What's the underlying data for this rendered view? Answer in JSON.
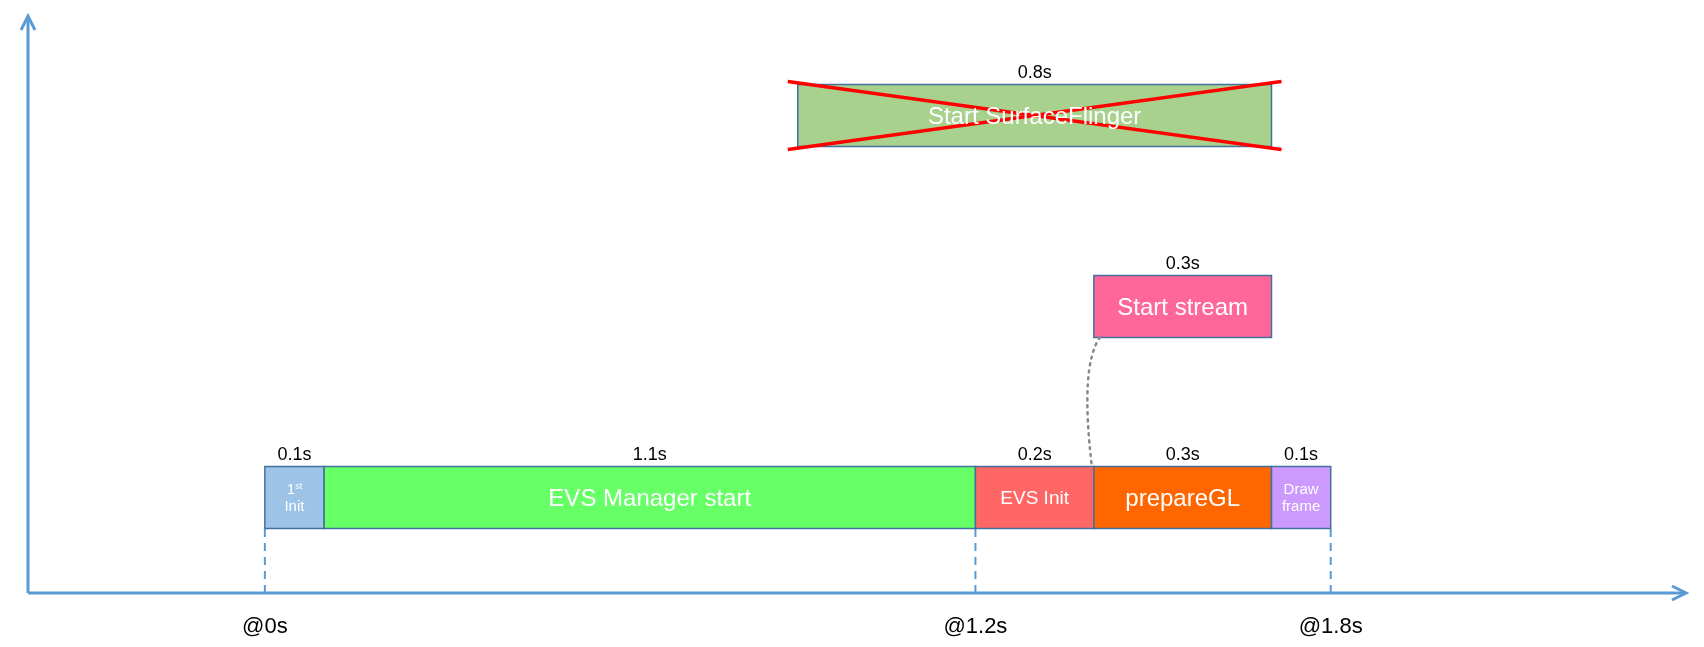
{
  "chart_data": {
    "type": "bar",
    "orientation": "horizontal",
    "categories": [
      null,
      null,
      null
    ],
    "series": [
      {
        "name": "1$^{st}$ Init",
        "color": "#9dc3e6",
        "values": [
          null,
          null,
          0.1
        ],
        "base": [
          null,
          null,
          0
        ],
        "value_labels": [
          null,
          null,
          "0.1s"
        ]
      },
      {
        "name": "EVS Manager start",
        "color": "#66ff66",
        "values": [
          null,
          null,
          1.1
        ],
        "base": [
          null,
          null,
          0.1
        ],
        "value_labels": [
          null,
          null,
          "1.1s"
        ]
      },
      {
        "name": "EVS Init",
        "color": "#ff6666",
        "values": [
          null,
          null,
          0.2
        ],
        "base": [
          null,
          null,
          1.2
        ],
        "value_labels": [
          null,
          null,
          "0.2s"
        ]
      },
      {
        "name": "prepareGL",
        "color": "#ff6600",
        "values": [
          null,
          null,
          0.3
        ],
        "base": [
          null,
          null,
          1.4
        ],
        "value_labels": [
          null,
          null,
          "0.3s"
        ]
      },
      {
        "name": "Draw frame",
        "color": "#cc99ff",
        "values": [
          null,
          null,
          0.1
        ],
        "base": [
          null,
          null,
          1.7
        ],
        "value_labels": [
          null,
          null,
          "0.1s"
        ]
      },
      {
        "name": "Start stream",
        "color": "#ff6699",
        "values": [
          null,
          0.3,
          null
        ],
        "base": [
          null,
          1.4,
          null
        ],
        "value_labels": [
          null,
          "0.3s",
          null
        ]
      },
      {
        "name": "Start SurfaceFlinger",
        "color": "#a9d18e",
        "values": [
          0.8,
          null,
          null
        ],
        "base": [
          0.9,
          null,
          null
        ],
        "value_labels": [
          "0.8s",
          null,
          null
        ]
      }
    ],
    "xlim": [
      -0.4,
      2.4
    ],
    "xticks": [
      {
        "value": 0,
        "label": "@0s"
      },
      {
        "value": 1.2,
        "label": "@1.2s"
      },
      {
        "value": 1.8,
        "label": "@1.8s"
      }
    ],
    "tick_labels": "x",
    "ref_lines": [
      {
        "axis": "x",
        "value": 0,
        "line_style": "dashed",
        "color": "#5b9bd5"
      },
      {
        "axis": "x",
        "value": 1.2,
        "line_style": "dashed",
        "color": "#5b9bd5"
      },
      {
        "axis": "x",
        "value": 1.8,
        "line_style": "dashed",
        "color": "#5b9bd5"
      }
    ]
  }
}
